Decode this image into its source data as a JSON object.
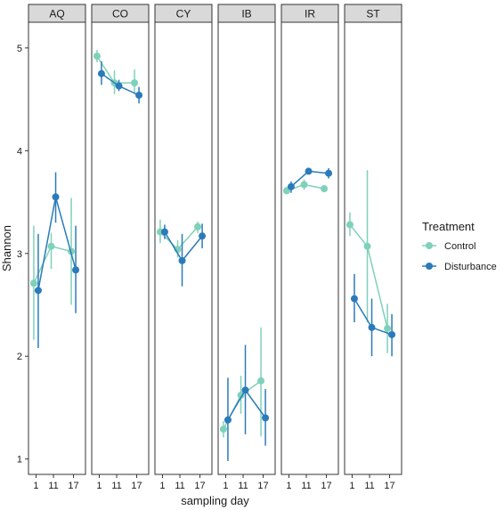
{
  "chart_data": {
    "type": "line",
    "xlabel": "sampling day",
    "ylabel": "Shannon",
    "ylim": [
      0.85,
      5.25
    ],
    "yticks": [
      1,
      2,
      3,
      4,
      5
    ],
    "x_categories": [
      "1",
      "11",
      "17"
    ],
    "legend": {
      "title": "Treatment",
      "placement": "right"
    },
    "colors": {
      "Control": "#7fd1b9",
      "Disturbance": "#2b7bba"
    },
    "facets": [
      {
        "name": "AQ",
        "series": [
          {
            "name": "Control",
            "mean": [
              2.71,
              3.07,
              3.02
            ],
            "low": [
              2.16,
              2.85,
              2.5
            ],
            "high": [
              3.27,
              3.2,
              3.54
            ]
          },
          {
            "name": "Disturbance",
            "mean": [
              2.64,
              3.55,
              2.84
            ],
            "low": [
              2.08,
              3.3,
              2.42
            ],
            "high": [
              3.19,
              3.79,
              3.27
            ]
          }
        ]
      },
      {
        "name": "CO",
        "series": [
          {
            "name": "Control",
            "mean": [
              4.92,
              4.66,
              4.66
            ],
            "low": [
              4.86,
              4.55,
              4.55
            ],
            "high": [
              4.98,
              4.78,
              4.79
            ]
          },
          {
            "name": "Disturbance",
            "mean": [
              4.75,
              4.63,
              4.54
            ],
            "low": [
              4.64,
              4.58,
              4.46
            ],
            "high": [
              4.87,
              4.69,
              4.62
            ]
          }
        ]
      },
      {
        "name": "CY",
        "series": [
          {
            "name": "Control",
            "mean": [
              3.21,
              3.04,
              3.26
            ],
            "low": [
              3.1,
              2.96,
              3.2
            ],
            "high": [
              3.33,
              3.13,
              3.31
            ]
          },
          {
            "name": "Disturbance",
            "mean": [
              3.21,
              2.93,
              3.17
            ],
            "low": [
              3.14,
              2.68,
              3.05
            ],
            "high": [
              3.28,
              3.19,
              3.29
            ]
          }
        ]
      },
      {
        "name": "IB",
        "series": [
          {
            "name": "Control",
            "mean": [
              1.29,
              1.62,
              1.76
            ],
            "low": [
              1.21,
              1.44,
              1.22
            ],
            "high": [
              1.37,
              1.81,
              2.28
            ]
          },
          {
            "name": "Disturbance",
            "mean": [
              1.38,
              1.67,
              1.4
            ],
            "low": [
              0.98,
              1.24,
              1.13
            ],
            "high": [
              1.79,
              2.11,
              1.68
            ]
          }
        ]
      },
      {
        "name": "IR",
        "series": [
          {
            "name": "Control",
            "mean": [
              3.61,
              3.67,
              3.63
            ],
            "low": [
              3.58,
              3.62,
              3.61
            ],
            "high": [
              3.65,
              3.72,
              3.66
            ]
          },
          {
            "name": "Disturbance",
            "mean": [
              3.65,
              3.8,
              3.78
            ],
            "low": [
              3.59,
              3.78,
              3.73
            ],
            "high": [
              3.7,
              3.82,
              3.83
            ]
          }
        ]
      },
      {
        "name": "ST",
        "series": [
          {
            "name": "Control",
            "mean": [
              3.28,
              3.07,
              2.27
            ],
            "low": [
              3.17,
              2.33,
              2.03
            ],
            "high": [
              3.4,
              3.81,
              2.51
            ]
          },
          {
            "name": "Disturbance",
            "mean": [
              2.56,
              2.28,
              2.21
            ],
            "low": [
              2.33,
              2.0,
              2.0
            ],
            "high": [
              2.8,
              2.56,
              2.41
            ]
          }
        ]
      }
    ]
  }
}
